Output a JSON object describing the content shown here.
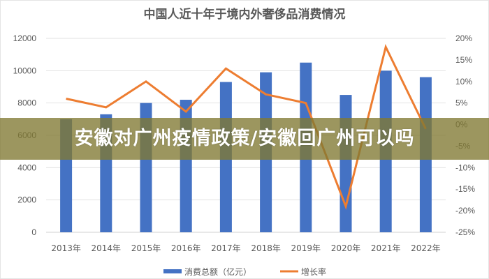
{
  "banner": {
    "text": "安徽对广州疫情政策/安徽回广州可以吗",
    "color": "#807832"
  },
  "chart_data": {
    "type": "bar+line",
    "title": "中国人近十年于境内外奢侈品消费情况",
    "categories": [
      "2013年",
      "2014年",
      "2015年",
      "2016年",
      "2017年",
      "2018年",
      "2019年",
      "2020年",
      "2021年",
      "2022年"
    ],
    "series": [
      {
        "name": "消费总额（亿元）",
        "type": "bar",
        "axis": "left",
        "color": "#4472C4",
        "values": [
          7000,
          7300,
          8000,
          8200,
          9300,
          9900,
          10500,
          8500,
          10000,
          9600
        ]
      },
      {
        "name": "增长率",
        "type": "line",
        "axis": "right",
        "color": "#ED7D31",
        "values": [
          6,
          4,
          10,
          3,
          13,
          7,
          5,
          -19,
          18,
          -1
        ]
      }
    ],
    "left_axis": {
      "ylim": [
        0,
        12000
      ],
      "ticks": [
        "0",
        "2000",
        "4000",
        "6000",
        "8000",
        "10000",
        "12000"
      ]
    },
    "right_axis": {
      "ylim": [
        -25,
        20
      ],
      "ticks": [
        "-25%",
        "-20%",
        "-15%",
        "-10%",
        "-5%",
        "0%",
        "5%",
        "10%",
        "15%",
        "20%"
      ]
    },
    "legend": {
      "position": "bottom",
      "entries": [
        "消费总额（亿元）",
        "增长率"
      ]
    },
    "grid": true,
    "xlabel": "",
    "ylabel": ""
  }
}
